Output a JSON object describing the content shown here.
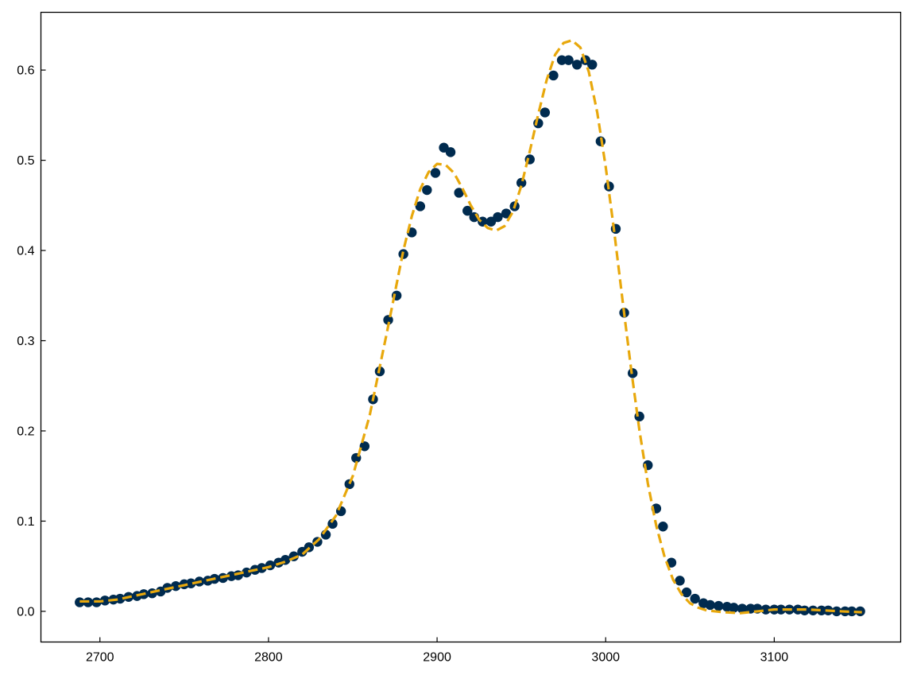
{
  "chart_data": {
    "type": "scatter",
    "xlim": [
      2665,
      3175
    ],
    "ylim": [
      -0.034,
      0.664
    ],
    "x_ticks": [
      2700,
      2800,
      2900,
      3000,
      3100
    ],
    "y_ticks": [
      0.0,
      0.1,
      0.2,
      0.3,
      0.4,
      0.5,
      0.6
    ],
    "x_tick_labels": [
      "2700",
      "2800",
      "2900",
      "3000",
      "3100"
    ],
    "y_tick_labels": [
      "0.0",
      "0.1",
      "0.2",
      "0.3",
      "0.4",
      "0.5",
      "0.6"
    ],
    "title": "",
    "xlabel": "",
    "ylabel": "",
    "grid": false,
    "tick_direction": "in",
    "series": [
      {
        "kind": "scatter",
        "color": "#002b4f",
        "points": [
          [
            2688,
            0.01
          ],
          [
            2693,
            0.01
          ],
          [
            2698,
            0.01
          ],
          [
            2703,
            0.012
          ],
          [
            2708,
            0.013
          ],
          [
            2712,
            0.014
          ],
          [
            2717,
            0.016
          ],
          [
            2722,
            0.017
          ],
          [
            2726,
            0.019
          ],
          [
            2731,
            0.02
          ],
          [
            2736,
            0.022
          ],
          [
            2740,
            0.026
          ],
          [
            2745,
            0.028
          ],
          [
            2750,
            0.03
          ],
          [
            2754,
            0.031
          ],
          [
            2759,
            0.033
          ],
          [
            2764,
            0.034
          ],
          [
            2768,
            0.036
          ],
          [
            2773,
            0.037
          ],
          [
            2778,
            0.039
          ],
          [
            2782,
            0.04
          ],
          [
            2787,
            0.043
          ],
          [
            2792,
            0.046
          ],
          [
            2796,
            0.048
          ],
          [
            2801,
            0.051
          ],
          [
            2806,
            0.054
          ],
          [
            2810,
            0.057
          ],
          [
            2815,
            0.061
          ],
          [
            2820,
            0.066
          ],
          [
            2824,
            0.071
          ],
          [
            2829,
            0.077
          ],
          [
            2834,
            0.085
          ],
          [
            2838,
            0.097
          ],
          [
            2843,
            0.111
          ],
          [
            2848,
            0.141
          ],
          [
            2852,
            0.17
          ],
          [
            2857,
            0.183
          ],
          [
            2862,
            0.235
          ],
          [
            2866,
            0.266
          ],
          [
            2871,
            0.323
          ],
          [
            2876,
            0.35
          ],
          [
            2880,
            0.396
          ],
          [
            2885,
            0.42
          ],
          [
            2890,
            0.449
          ],
          [
            2894,
            0.467
          ],
          [
            2899,
            0.486
          ],
          [
            2904,
            0.514
          ],
          [
            2908,
            0.509
          ],
          [
            2913,
            0.464
          ],
          [
            2918,
            0.444
          ],
          [
            2922,
            0.437
          ],
          [
            2927,
            0.432
          ],
          [
            2932,
            0.432
          ],
          [
            2936,
            0.437
          ],
          [
            2941,
            0.441
          ],
          [
            2946,
            0.449
          ],
          [
            2950,
            0.475
          ],
          [
            2955,
            0.501
          ],
          [
            2960,
            0.541
          ],
          [
            2964,
            0.553
          ],
          [
            2969,
            0.594
          ],
          [
            2974,
            0.611
          ],
          [
            2978,
            0.611
          ],
          [
            2983,
            0.606
          ],
          [
            2988,
            0.611
          ],
          [
            2992,
            0.606
          ],
          [
            2997,
            0.521
          ],
          [
            3002,
            0.471
          ],
          [
            3006,
            0.424
          ],
          [
            3011,
            0.331
          ],
          [
            3016,
            0.264
          ],
          [
            3020,
            0.216
          ],
          [
            3025,
            0.162
          ],
          [
            3030,
            0.114
          ],
          [
            3034,
            0.094
          ],
          [
            3039,
            0.054
          ],
          [
            3044,
            0.034
          ],
          [
            3048,
            0.021
          ],
          [
            3053,
            0.014
          ],
          [
            3058,
            0.009
          ],
          [
            3062,
            0.007
          ],
          [
            3067,
            0.006
          ],
          [
            3072,
            0.005
          ],
          [
            3076,
            0.004
          ],
          [
            3081,
            0.003
          ],
          [
            3086,
            0.003
          ],
          [
            3090,
            0.003
          ],
          [
            3095,
            0.002
          ],
          [
            3100,
            0.002
          ],
          [
            3104,
            0.002
          ],
          [
            3109,
            0.002
          ],
          [
            3114,
            0.002
          ],
          [
            3118,
            0.001
          ],
          [
            3123,
            0.001
          ],
          [
            3128,
            0.001
          ],
          [
            3132,
            0.001
          ],
          [
            3137,
            0.0
          ],
          [
            3142,
            0.0
          ],
          [
            3146,
            0.0
          ],
          [
            3151,
            0.0
          ]
        ]
      },
      {
        "kind": "line",
        "style": "dashed",
        "color": "#e8a80c",
        "points": [
          [
            2688,
            0.011
          ],
          [
            2700,
            0.011
          ],
          [
            2710,
            0.013
          ],
          [
            2720,
            0.017
          ],
          [
            2730,
            0.021
          ],
          [
            2740,
            0.025
          ],
          [
            2750,
            0.029
          ],
          [
            2760,
            0.033
          ],
          [
            2770,
            0.037
          ],
          [
            2780,
            0.041
          ],
          [
            2790,
            0.045
          ],
          [
            2800,
            0.049
          ],
          [
            2810,
            0.055
          ],
          [
            2820,
            0.063
          ],
          [
            2830,
            0.08
          ],
          [
            2840,
            0.106
          ],
          [
            2850,
            0.15
          ],
          [
            2860,
            0.217
          ],
          [
            2870,
            0.307
          ],
          [
            2880,
            0.4
          ],
          [
            2885,
            0.438
          ],
          [
            2890,
            0.468
          ],
          [
            2895,
            0.487
          ],
          [
            2900,
            0.496
          ],
          [
            2905,
            0.495
          ],
          [
            2910,
            0.486
          ],
          [
            2915,
            0.469
          ],
          [
            2920,
            0.45
          ],
          [
            2925,
            0.434
          ],
          [
            2930,
            0.425
          ],
          [
            2935,
            0.422
          ],
          [
            2940,
            0.427
          ],
          [
            2945,
            0.443
          ],
          [
            2950,
            0.472
          ],
          [
            2955,
            0.51
          ],
          [
            2960,
            0.551
          ],
          [
            2965,
            0.589
          ],
          [
            2970,
            0.617
          ],
          [
            2975,
            0.63
          ],
          [
            2980,
            0.633
          ],
          [
            2985,
            0.625
          ],
          [
            2990,
            0.598
          ],
          [
            2995,
            0.553
          ],
          [
            3000,
            0.493
          ],
          [
            3005,
            0.422
          ],
          [
            3010,
            0.345
          ],
          [
            3015,
            0.27
          ],
          [
            3020,
            0.201
          ],
          [
            3025,
            0.142
          ],
          [
            3030,
            0.095
          ],
          [
            3035,
            0.06
          ],
          [
            3040,
            0.035
          ],
          [
            3045,
            0.019
          ],
          [
            3050,
            0.009
          ],
          [
            3055,
            0.004
          ],
          [
            3060,
            0.001
          ],
          [
            3065,
            0.0
          ],
          [
            3070,
            -0.001
          ],
          [
            3080,
            -0.002
          ],
          [
            3090,
            0.0
          ],
          [
            3100,
            0.002
          ],
          [
            3110,
            0.002
          ],
          [
            3120,
            0.002
          ],
          [
            3130,
            0.001
          ],
          [
            3140,
            0.0
          ],
          [
            3152,
            -0.001
          ]
        ]
      }
    ]
  }
}
